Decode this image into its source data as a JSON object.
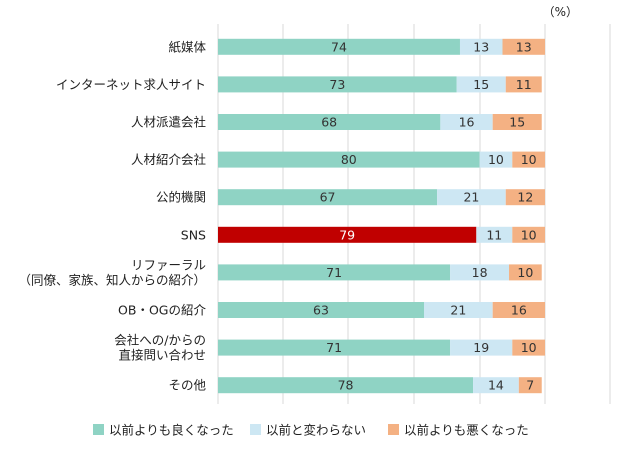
{
  "chart_data": {
    "type": "bar",
    "orientation": "horizontal",
    "stacked": true,
    "unit": "（%）",
    "xlim": [
      0,
      100
    ],
    "grid": true,
    "legend_position": "bottom",
    "categories": [
      [
        "紙媒体"
      ],
      [
        "インターネット求人サイト"
      ],
      [
        "人材派遣会社"
      ],
      [
        "人材紹介会社"
      ],
      [
        "公的機関"
      ],
      [
        "SNS"
      ],
      [
        "リファーラル",
        "（同僚、家族、知人からの紹介）"
      ],
      [
        "OB・OGの紹介"
      ],
      [
        "会社への/からの",
        "直接問い合わせ"
      ],
      [
        "その他"
      ]
    ],
    "highlight_index": 5,
    "highlight_color": "#c00000",
    "series": [
      {
        "name": "以前よりも良くなった",
        "color": "#8fd3c4",
        "values": [
          74,
          73,
          68,
          80,
          67,
          79,
          71,
          63,
          71,
          78
        ]
      },
      {
        "name": "以前と変わらない",
        "color": "#cde7f3",
        "values": [
          13,
          15,
          16,
          10,
          21,
          11,
          18,
          21,
          19,
          14
        ]
      },
      {
        "name": "以前よりも悪くなった",
        "color": "#f4b183",
        "values": [
          13,
          11,
          15,
          10,
          12,
          10,
          10,
          16,
          10,
          7
        ]
      }
    ]
  }
}
